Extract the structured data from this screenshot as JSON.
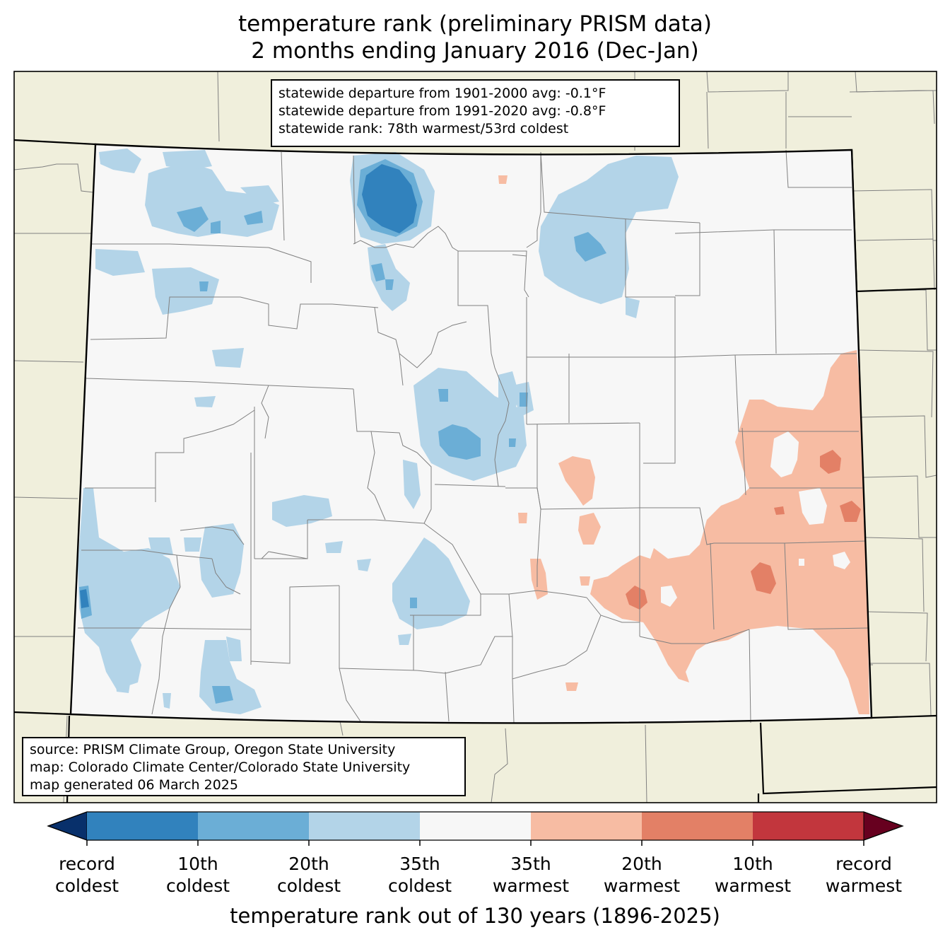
{
  "title": {
    "line1": "temperature rank (preliminary PRISM data)",
    "line2": "2 months ending January 2016 (Dec-Jan)"
  },
  "stats_box": {
    "line1": "statewide departure from 1901-2000 avg: -0.1°F",
    "line2": "statewide departure from 1991-2020 avg: -0.8°F",
    "line3": "statewide rank: 78th warmest/53rd coldest"
  },
  "source_box": {
    "line1": "source: PRISM Climate Group, Oregon State University",
    "line2": "map: Colorado Climate Center/Colorado State University",
    "line3": "map generated 06 March 2025"
  },
  "colorbar": {
    "title": "temperature rank out of 130 years (1896-2025)",
    "colors": {
      "below_min": "#08306b",
      "bins": [
        "#3182bd",
        "#6baed6",
        "#b3d4e8",
        "#f7f7f7",
        "#f7bca3",
        "#e38066",
        "#c2363d"
      ],
      "above_max": "#67001f"
    },
    "ticks": [
      {
        "top": "record",
        "bottom": "coldest"
      },
      {
        "top": "10th",
        "bottom": "coldest"
      },
      {
        "top": "20th",
        "bottom": "coldest"
      },
      {
        "top": "35th",
        "bottom": "coldest"
      },
      {
        "top": "35th",
        "bottom": "warmest"
      },
      {
        "top": "20th",
        "bottom": "warmest"
      },
      {
        "top": "10th",
        "bottom": "warmest"
      },
      {
        "top": "record",
        "bottom": "warmest"
      }
    ]
  },
  "map_colors": {
    "land_outside": "#f0efdc",
    "state_fill": "#f7f7f7",
    "border": "#000000",
    "county": "#808080"
  }
}
